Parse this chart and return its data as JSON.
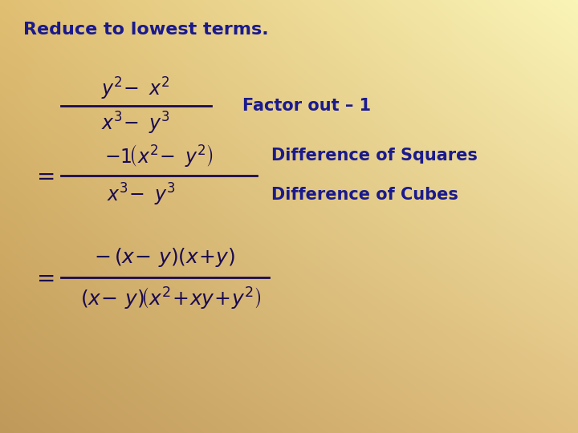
{
  "title": "Reduce to lowest terms.",
  "title_color": "#1a1a8c",
  "math_color": "#1a1a8c",
  "dark_math_color": "#1a0a50",
  "figsize": [
    7.2,
    5.4
  ],
  "dpi": 100,
  "bg_left": "#c8a060",
  "bg_right": "#f0e8b0",
  "note1": "Factor out – 1",
  "note2": "Difference of Squares",
  "note3": "Difference of Cubes"
}
